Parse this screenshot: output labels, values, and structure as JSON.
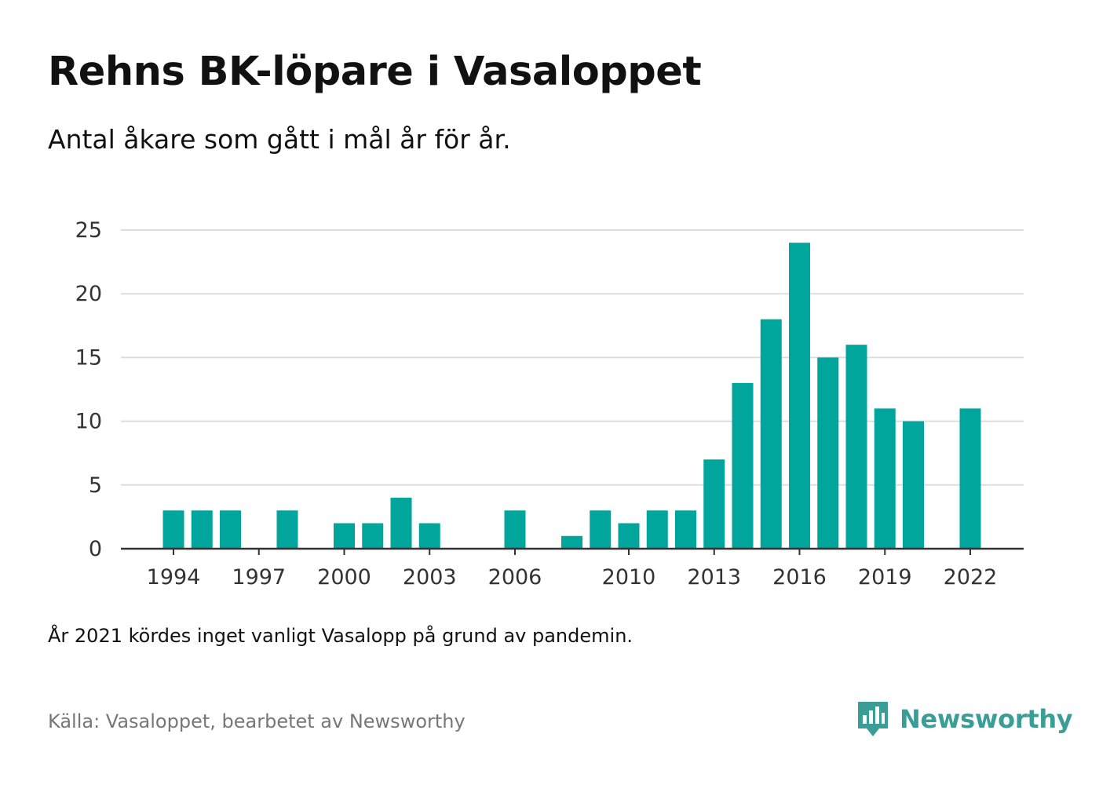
{
  "header": {
    "title": "Rehns BK-löpare i Vasaloppet",
    "subtitle": "Antal åkare som gått i mål år för år."
  },
  "footer": {
    "note": "År 2021 kördes inget vanligt Vasalopp på grund av pandemin.",
    "source": "Källa: Vasaloppet, bearbetet av Newsworthy",
    "logo_text": "Newsworthy"
  },
  "colors": {
    "bar": "#00a59b",
    "logo": "#3a9e97",
    "grid": "#dddddd",
    "axis": "#333333"
  },
  "chart_data": {
    "type": "bar",
    "categories": [
      "1994",
      "1995",
      "1996",
      "1997",
      "1998",
      "1999",
      "2000",
      "2001",
      "2002",
      "2003",
      "2004",
      "2005",
      "2006",
      "2007",
      "2008",
      "2009",
      "2010",
      "2011",
      "2012",
      "2013",
      "2014",
      "2015",
      "2016",
      "2017",
      "2018",
      "2019",
      "2020",
      "2021",
      "2022"
    ],
    "values": [
      3,
      3,
      3,
      0,
      3,
      0,
      2,
      2,
      4,
      2,
      0,
      0,
      3,
      0,
      1,
      3,
      2,
      3,
      3,
      7,
      13,
      18,
      24,
      15,
      16,
      11,
      10,
      0,
      11
    ],
    "x_ticks": [
      "1994",
      "1997",
      "2000",
      "2003",
      "2006",
      "2010",
      "2013",
      "2016",
      "2019",
      "2022"
    ],
    "y_ticks": [
      0,
      5,
      10,
      15,
      20,
      25
    ],
    "ylim": [
      0,
      25
    ],
    "grid": true,
    "legend": "none"
  }
}
